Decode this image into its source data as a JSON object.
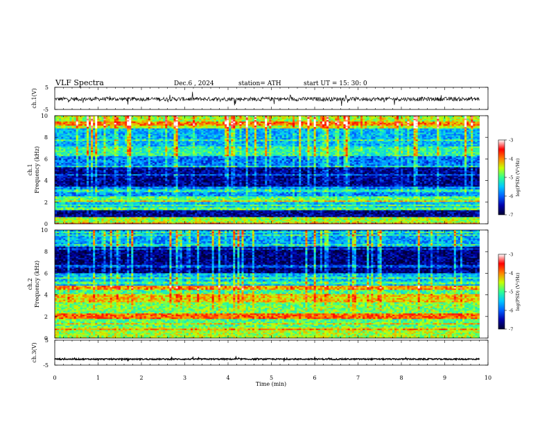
{
  "header": {
    "title": "VLF  Spectra",
    "date": "Dec.6  , 2024",
    "station": "station= ATH",
    "start_ut": "start  UT  =    15: 30: 0"
  },
  "chart_data": [
    {
      "type": "line",
      "panel": "ch1-waveform",
      "ylabel": "ch.1(V)",
      "ylim": [
        -5,
        5
      ],
      "yticks": [
        "5",
        "-5"
      ],
      "xlim": [
        0,
        10
      ],
      "x_data_range": [
        0,
        9.8
      ],
      "baseline": -0.3,
      "noise_amplitude": 0.9
    },
    {
      "type": "heatmap",
      "panel": "ch1-spectrogram",
      "ylabel": "ch.1\nFrequency  (kHz)",
      "ylim": [
        0,
        10
      ],
      "yticks": [
        "0",
        "2",
        "4",
        "6",
        "8",
        "10"
      ],
      "xlim": [
        0,
        10
      ],
      "x_data_range": [
        0,
        9.8
      ],
      "colorbar": {
        "label": "log(PSD) (V²/Hz)",
        "range": [
          -7,
          -3
        ],
        "ticks": [
          "-3",
          "-4",
          "-5",
          "-6",
          "-7"
        ]
      },
      "bands": [
        {
          "f_low": 0.0,
          "f_high": 0.6,
          "level": -4.6
        },
        {
          "f_low": 0.6,
          "f_high": 1.3,
          "level": -6.6
        },
        {
          "f_low": 1.3,
          "f_high": 2.0,
          "level": -5.5
        },
        {
          "f_low": 2.0,
          "f_high": 2.6,
          "level": -4.9
        },
        {
          "f_low": 2.6,
          "f_high": 3.4,
          "level": -5.8
        },
        {
          "f_low": 3.4,
          "f_high": 5.2,
          "level": -6.6
        },
        {
          "f_low": 5.2,
          "f_high": 6.3,
          "level": -5.9
        },
        {
          "f_low": 6.3,
          "f_high": 7.2,
          "level": -5.1
        },
        {
          "f_low": 7.2,
          "f_high": 8.8,
          "level": -5.6
        },
        {
          "f_low": 8.8,
          "f_high": 10.0,
          "level": -4.6
        }
      ]
    },
    {
      "type": "heatmap",
      "panel": "ch2-spectrogram",
      "ylabel": "ch.2\nFrequency  (kHz)",
      "ylim": [
        0,
        10
      ],
      "yticks": [
        "0",
        "2",
        "4",
        "6",
        "8",
        "10"
      ],
      "xlim": [
        0,
        10
      ],
      "x_data_range": [
        0,
        9.8
      ],
      "colorbar": {
        "label": "log(PSD) (V²/Hz)",
        "range": [
          -7,
          -3
        ],
        "ticks": [
          "-3",
          "-4",
          "-5",
          "-6",
          "-7"
        ]
      },
      "bands": [
        {
          "f_low": 0.0,
          "f_high": 1.0,
          "level": -4.6
        },
        {
          "f_low": 1.0,
          "f_high": 1.8,
          "level": -4.9
        },
        {
          "f_low": 1.8,
          "f_high": 2.3,
          "level": -3.9
        },
        {
          "f_low": 2.3,
          "f_high": 3.3,
          "level": -4.8
        },
        {
          "f_low": 3.3,
          "f_high": 4.1,
          "level": -4.3
        },
        {
          "f_low": 4.1,
          "f_high": 4.5,
          "level": -5.0
        },
        {
          "f_low": 4.5,
          "f_high": 4.9,
          "level": -4.1
        },
        {
          "f_low": 4.9,
          "f_high": 6.0,
          "level": -5.6
        },
        {
          "f_low": 6.0,
          "f_high": 8.5,
          "level": -6.7
        },
        {
          "f_low": 8.5,
          "f_high": 10.0,
          "level": -5.7
        }
      ]
    },
    {
      "type": "line",
      "panel": "ch3-waveform",
      "ylabel": "ch.3(V)",
      "ylim": [
        -5,
        5
      ],
      "yticks": [
        "5",
        "-5"
      ],
      "xlim": [
        0,
        10
      ],
      "x_data_range": [
        0,
        9.8
      ],
      "baseline": -2.6,
      "noise_amplitude": 0.25
    }
  ],
  "xaxis": {
    "label": "Time  (min)",
    "ticks": [
      "0",
      "1",
      "2",
      "3",
      "4",
      "5",
      "6",
      "7",
      "8",
      "9",
      "10"
    ]
  },
  "colors": {
    "colormap": [
      "#000033",
      "#0000aa",
      "#0060ff",
      "#00c8ff",
      "#30ff90",
      "#c8ff00",
      "#ff8000",
      "#ff0000",
      "#ffffff"
    ]
  }
}
